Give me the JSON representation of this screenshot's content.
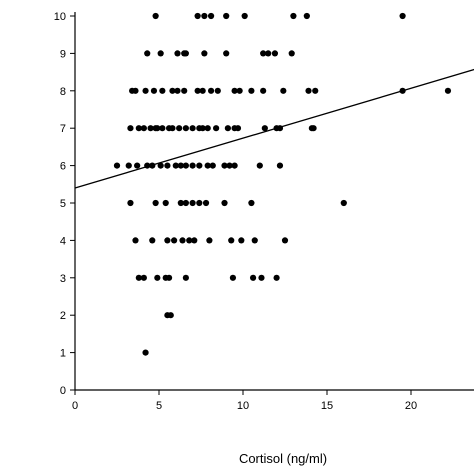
{
  "chart_data": {
    "type": "scatter",
    "title": "",
    "xlabel": "Cortisol (ng/ml)",
    "ylabel": "",
    "xlim": [
      0,
      24
    ],
    "ylim": [
      0,
      10
    ],
    "xticks": [
      0,
      5,
      10,
      15,
      20
    ],
    "yticks": [
      0,
      1,
      2,
      3,
      4,
      5,
      6,
      7,
      8,
      9,
      10
    ],
    "grid": false,
    "legend": "none",
    "point_color": "#000000",
    "line_color": "#000000",
    "trendline": {
      "x": [
        0,
        24
      ],
      "y": [
        5.4,
        8.6
      ]
    },
    "series": [
      {
        "points": [
          [
            4.8,
            10
          ],
          [
            7.3,
            10
          ],
          [
            7.7,
            10
          ],
          [
            8.1,
            10
          ],
          [
            9.0,
            10
          ],
          [
            10.1,
            10
          ],
          [
            13.0,
            10
          ],
          [
            13.8,
            10
          ],
          [
            19.5,
            10
          ],
          [
            4.3,
            9
          ],
          [
            5.1,
            9
          ],
          [
            6.1,
            9
          ],
          [
            6.5,
            9
          ],
          [
            6.6,
            9
          ],
          [
            7.7,
            9
          ],
          [
            9.0,
            9
          ],
          [
            11.2,
            9
          ],
          [
            11.5,
            9
          ],
          [
            11.9,
            9
          ],
          [
            12.9,
            9
          ],
          [
            3.4,
            8
          ],
          [
            3.6,
            8
          ],
          [
            4.2,
            8
          ],
          [
            4.7,
            8
          ],
          [
            5.2,
            8
          ],
          [
            5.8,
            8
          ],
          [
            6.1,
            8
          ],
          [
            6.5,
            8
          ],
          [
            7.3,
            8
          ],
          [
            7.6,
            8
          ],
          [
            8.1,
            8
          ],
          [
            8.5,
            8
          ],
          [
            9.5,
            8
          ],
          [
            9.8,
            8
          ],
          [
            10.5,
            8
          ],
          [
            11.2,
            8
          ],
          [
            12.4,
            8
          ],
          [
            13.9,
            8
          ],
          [
            14.3,
            8
          ],
          [
            19.5,
            8
          ],
          [
            22.2,
            8
          ],
          [
            3.3,
            7
          ],
          [
            3.8,
            7
          ],
          [
            4.1,
            7
          ],
          [
            4.5,
            7
          ],
          [
            4.8,
            7
          ],
          [
            4.9,
            7
          ],
          [
            5.2,
            7
          ],
          [
            5.6,
            7
          ],
          [
            5.8,
            7
          ],
          [
            6.2,
            7
          ],
          [
            6.6,
            7
          ],
          [
            7.0,
            7
          ],
          [
            7.4,
            7
          ],
          [
            7.6,
            7
          ],
          [
            7.9,
            7
          ],
          [
            8.4,
            7
          ],
          [
            9.1,
            7
          ],
          [
            9.5,
            7
          ],
          [
            9.7,
            7
          ],
          [
            11.3,
            7
          ],
          [
            12.0,
            7
          ],
          [
            12.2,
            7
          ],
          [
            14.1,
            7
          ],
          [
            14.2,
            7
          ],
          [
            2.5,
            6
          ],
          [
            3.2,
            6
          ],
          [
            3.7,
            6
          ],
          [
            4.3,
            6
          ],
          [
            4.6,
            6
          ],
          [
            5.1,
            6
          ],
          [
            5.5,
            6
          ],
          [
            6.0,
            6
          ],
          [
            6.3,
            6
          ],
          [
            6.6,
            6
          ],
          [
            7.0,
            6
          ],
          [
            7.4,
            6
          ],
          [
            7.9,
            6
          ],
          [
            8.2,
            6
          ],
          [
            8.9,
            6
          ],
          [
            9.2,
            6
          ],
          [
            9.5,
            6
          ],
          [
            11.0,
            6
          ],
          [
            12.2,
            6
          ],
          [
            3.3,
            5
          ],
          [
            4.8,
            5
          ],
          [
            5.4,
            5
          ],
          [
            6.3,
            5
          ],
          [
            6.6,
            5
          ],
          [
            7.0,
            5
          ],
          [
            7.4,
            5
          ],
          [
            7.8,
            5
          ],
          [
            8.9,
            5
          ],
          [
            10.5,
            5
          ],
          [
            16.0,
            5
          ],
          [
            3.6,
            4
          ],
          [
            4.6,
            4
          ],
          [
            5.5,
            4
          ],
          [
            5.9,
            4
          ],
          [
            6.4,
            4
          ],
          [
            6.8,
            4
          ],
          [
            7.1,
            4
          ],
          [
            8.0,
            4
          ],
          [
            9.3,
            4
          ],
          [
            9.9,
            4
          ],
          [
            10.7,
            4
          ],
          [
            12.5,
            4
          ],
          [
            3.8,
            3
          ],
          [
            4.1,
            3
          ],
          [
            4.9,
            3
          ],
          [
            5.4,
            3
          ],
          [
            5.6,
            3
          ],
          [
            6.6,
            3
          ],
          [
            9.4,
            3
          ],
          [
            10.6,
            3
          ],
          [
            11.1,
            3
          ],
          [
            12.0,
            3
          ],
          [
            5.5,
            2
          ],
          [
            5.7,
            2
          ],
          [
            4.2,
            1
          ]
        ]
      }
    ]
  }
}
